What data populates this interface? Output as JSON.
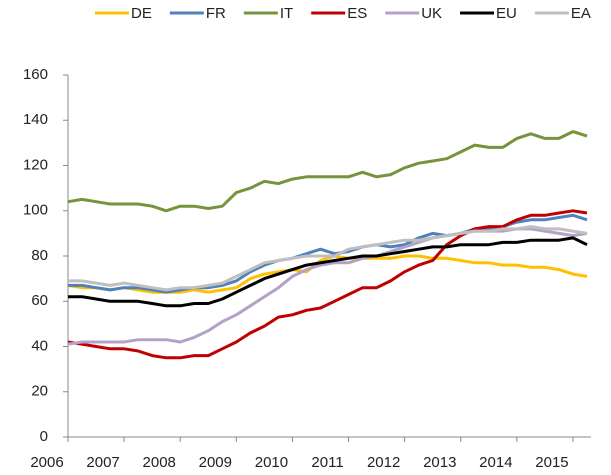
{
  "chart_data": {
    "type": "line",
    "categories": [
      "2006",
      null,
      null,
      null,
      "2007",
      null,
      null,
      null,
      "2008",
      null,
      null,
      null,
      "2009",
      null,
      null,
      null,
      "2010",
      null,
      null,
      null,
      "2011",
      null,
      null,
      null,
      "2012",
      null,
      null,
      null,
      "2013",
      null,
      null,
      null,
      "2014",
      null,
      null,
      null,
      "2015",
      null
    ],
    "series": [
      {
        "name": "DE",
        "color": "#ffc000",
        "values": [
          67,
          66,
          66,
          65,
          66,
          65,
          64,
          64,
          64,
          65,
          64,
          65,
          66,
          70,
          72,
          73,
          74,
          73,
          78,
          80,
          79,
          79,
          79,
          79,
          80,
          80,
          79,
          79,
          78,
          77,
          77,
          76,
          76,
          75,
          75,
          74,
          72,
          71
        ]
      },
      {
        "name": "FR",
        "color": "#4f81bd",
        "values": [
          67,
          67,
          66,
          65,
          66,
          66,
          65,
          64,
          65,
          66,
          66,
          67,
          69,
          73,
          76,
          78,
          79,
          81,
          83,
          81,
          82,
          84,
          85,
          84,
          85,
          88,
          90,
          89,
          90,
          92,
          92,
          93,
          95,
          96,
          96,
          97,
          98,
          96
        ]
      },
      {
        "name": "IT",
        "color": "#77933c",
        "values": [
          104,
          105,
          104,
          103,
          103,
          103,
          102,
          100,
          102,
          102,
          101,
          102,
          108,
          110,
          113,
          112,
          114,
          115,
          115,
          115,
          115,
          117,
          115,
          116,
          119,
          121,
          122,
          123,
          126,
          129,
          128,
          128,
          132,
          134,
          132,
          132,
          135,
          133
        ]
      },
      {
        "name": "ES",
        "color": "#c00000",
        "values": [
          42,
          41,
          40,
          39,
          39,
          38,
          36,
          35,
          35,
          36,
          36,
          39,
          42,
          46,
          49,
          53,
          54,
          56,
          57,
          60,
          63,
          66,
          66,
          69,
          73,
          76,
          78,
          85,
          89,
          92,
          93,
          93,
          96,
          98,
          98,
          99,
          100,
          99
        ]
      },
      {
        "name": "UK",
        "color": "#b3a2c7",
        "values": [
          41,
          42,
          42,
          42,
          42,
          43,
          43,
          43,
          42,
          44,
          47,
          51,
          54,
          58,
          62,
          66,
          71,
          74,
          76,
          77,
          77,
          79,
          80,
          82,
          84,
          86,
          88,
          89,
          90,
          91,
          91,
          91,
          92,
          92,
          91,
          90,
          89,
          90
        ]
      },
      {
        "name": "EU",
        "color": "#000000",
        "values": [
          62,
          62,
          61,
          60,
          60,
          60,
          59,
          58,
          58,
          59,
          59,
          61,
          64,
          67,
          70,
          72,
          74,
          76,
          77,
          78,
          79,
          80,
          80,
          81,
          82,
          83,
          84,
          84,
          85,
          85,
          85,
          86,
          86,
          87,
          87,
          87,
          88,
          85
        ]
      },
      {
        "name": "EA",
        "color": "#bfbfbf",
        "values": [
          69,
          69,
          68,
          67,
          68,
          67,
          66,
          65,
          66,
          66,
          67,
          68,
          71,
          74,
          77,
          78,
          79,
          80,
          80,
          80,
          83,
          84,
          85,
          86,
          87,
          87,
          88,
          89,
          90,
          91,
          91,
          92,
          92,
          93,
          92,
          92,
          91,
          90
        ]
      }
    ],
    "ylim": [
      0,
      160
    ],
    "yticks": [
      0,
      20,
      40,
      60,
      80,
      100,
      120,
      140,
      160
    ]
  }
}
